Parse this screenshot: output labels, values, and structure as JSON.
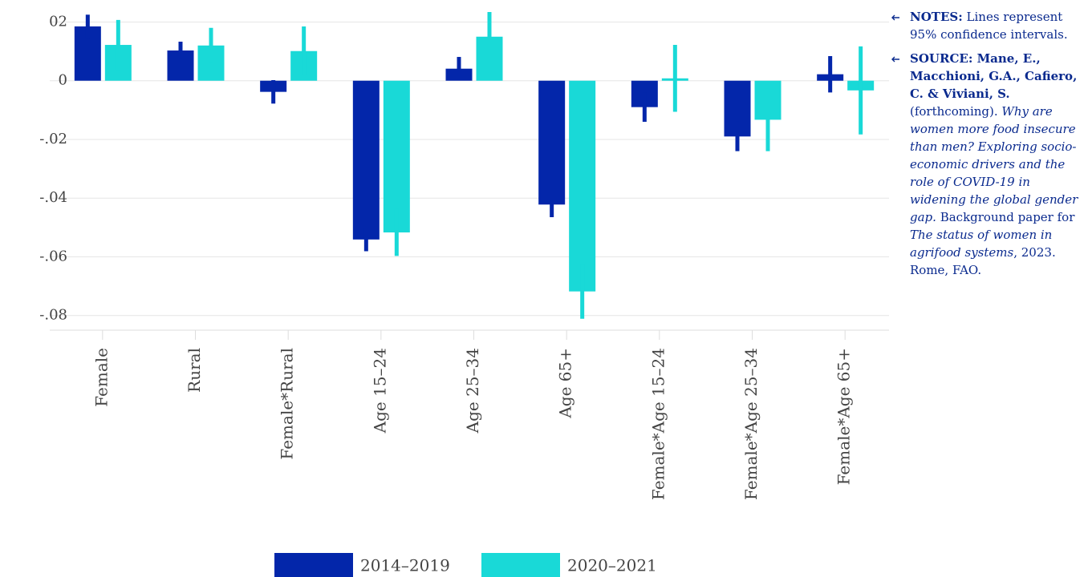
{
  "chart_data": {
    "type": "bar",
    "categories": [
      "Female",
      "Rural",
      "Female*Rural",
      "Age 15–24",
      "Age 25–34",
      "Age 65+",
      "Female*Age 15–24",
      "Female*Age 25–34",
      "Female*Age 65+"
    ],
    "series": [
      {
        "name": "2014–2019",
        "color": "#0326aa",
        "values": [
          0.0185,
          0.0103,
          -0.0038,
          -0.0541,
          0.0041,
          -0.0422,
          -0.009,
          -0.019,
          0.0022
        ],
        "errors": [
          0.004,
          0.003,
          0.004,
          0.004,
          0.004,
          0.0043,
          0.005,
          0.005,
          0.0062
        ]
      },
      {
        "name": "2020–2021",
        "color": "#19d9d7",
        "values": [
          0.0122,
          0.012,
          0.0101,
          -0.0517,
          0.015,
          -0.0718,
          0.0008,
          -0.0133,
          -0.0033
        ],
        "errors": [
          0.0085,
          0.006,
          0.0084,
          0.008,
          0.0084,
          0.0093,
          0.0114,
          0.0107,
          0.015
        ]
      }
    ],
    "ylim": [
      -0.085,
      0.0275
    ],
    "yticks": [
      {
        "value": 0.02,
        "label": "02"
      },
      0,
      {
        "value": -0.02,
        "label": "-.02"
      },
      {
        "value": -0.04,
        "label": "-.04"
      },
      {
        "value": -0.06,
        "label": "-.06"
      },
      {
        "value": -0.08,
        "label": "-.08"
      }
    ],
    "grid": true,
    "legend": "bottom"
  },
  "notes": {
    "label": "NOTES:",
    "text": "Lines represent 95% confidence intervals."
  },
  "source": {
    "label": "SOURCE: Mane, E., Macchioni, G.A., Cafiero, C. & Viviani, S.",
    "status": "(forthcoming).",
    "paper_title": "Why are women more food insecure than men? Exploring socio-economic drivers and the role of COVID-19 in widening the global gender gap.",
    "paper_type": "Background paper for",
    "report_title": "The status of women in agrifood systems",
    "comma": ",",
    "publisher": "2023. Rome, FAO."
  }
}
